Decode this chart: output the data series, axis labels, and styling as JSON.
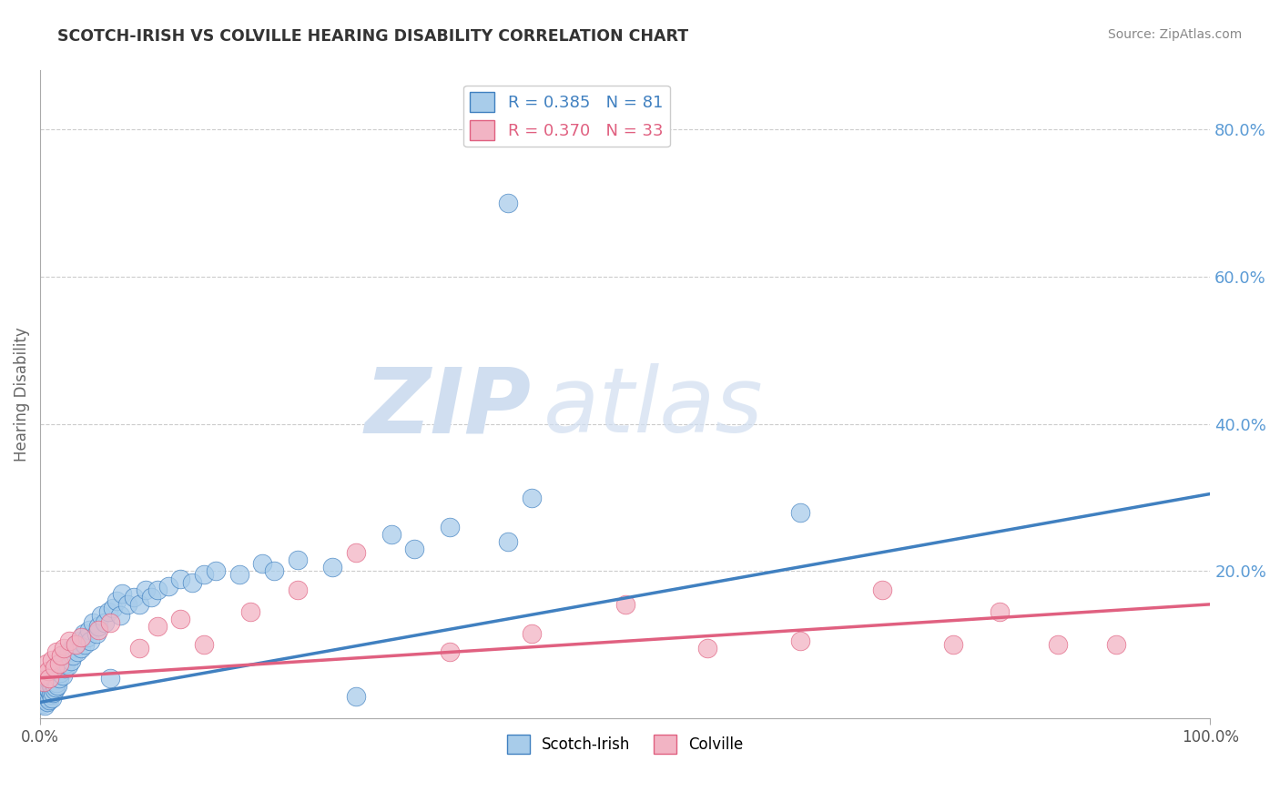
{
  "title": "SCOTCH-IRISH VS COLVILLE HEARING DISABILITY CORRELATION CHART",
  "source_text": "Source: ZipAtlas.com",
  "ylabel": "Hearing Disability",
  "right_ytick_labels": [
    "80.0%",
    "60.0%",
    "40.0%",
    "20.0%"
  ],
  "right_ytick_values": [
    0.8,
    0.6,
    0.4,
    0.2
  ],
  "xlim": [
    0.0,
    1.0
  ],
  "ylim": [
    0.0,
    0.88
  ],
  "blue_R": 0.385,
  "blue_N": 81,
  "pink_R": 0.37,
  "pink_N": 33,
  "blue_color": "#A8CCEA",
  "pink_color": "#F2B4C4",
  "blue_line_color": "#4080C0",
  "pink_line_color": "#E06080",
  "legend_label_blue": "Scotch-Irish",
  "legend_label_pink": "Colville",
  "watermark": "ZIPatlas",
  "watermark_color": "#D0DEF0",
  "background_color": "#ffffff",
  "grid_color": "#CCCCCC",
  "title_color": "#333333",
  "axis_label_color": "#666666",
  "right_tick_color": "#5B9BD5",
  "blue_trend_start": 0.022,
  "blue_trend_end": 0.305,
  "pink_trend_start": 0.055,
  "pink_trend_end": 0.155,
  "blue_x": [
    0.002,
    0.003,
    0.004,
    0.005,
    0.006,
    0.006,
    0.007,
    0.007,
    0.008,
    0.008,
    0.009,
    0.009,
    0.01,
    0.01,
    0.011,
    0.011,
    0.012,
    0.012,
    0.013,
    0.013,
    0.014,
    0.015,
    0.015,
    0.016,
    0.016,
    0.017,
    0.018,
    0.019,
    0.02,
    0.021,
    0.022,
    0.023,
    0.024,
    0.025,
    0.026,
    0.027,
    0.028,
    0.03,
    0.032,
    0.033,
    0.035,
    0.037,
    0.038,
    0.04,
    0.042,
    0.043,
    0.045,
    0.048,
    0.05,
    0.052,
    0.055,
    0.058,
    0.06,
    0.062,
    0.065,
    0.068,
    0.07,
    0.075,
    0.08,
    0.085,
    0.09,
    0.095,
    0.1,
    0.11,
    0.12,
    0.13,
    0.14,
    0.15,
    0.17,
    0.19,
    0.2,
    0.22,
    0.25,
    0.27,
    0.3,
    0.32,
    0.35,
    0.4,
    0.42,
    0.65,
    0.4
  ],
  "blue_y": [
    0.02,
    0.025,
    0.018,
    0.03,
    0.022,
    0.035,
    0.028,
    0.04,
    0.025,
    0.038,
    0.032,
    0.045,
    0.028,
    0.042,
    0.035,
    0.05,
    0.038,
    0.055,
    0.042,
    0.06,
    0.048,
    0.045,
    0.065,
    0.055,
    0.075,
    0.062,
    0.07,
    0.058,
    0.08,
    0.068,
    0.075,
    0.085,
    0.072,
    0.09,
    0.078,
    0.095,
    0.085,
    0.1,
    0.09,
    0.105,
    0.095,
    0.115,
    0.1,
    0.11,
    0.12,
    0.105,
    0.13,
    0.115,
    0.125,
    0.14,
    0.13,
    0.145,
    0.055,
    0.15,
    0.16,
    0.14,
    0.17,
    0.155,
    0.165,
    0.155,
    0.175,
    0.165,
    0.175,
    0.18,
    0.19,
    0.185,
    0.195,
    0.2,
    0.195,
    0.21,
    0.2,
    0.215,
    0.205,
    0.03,
    0.25,
    0.23,
    0.26,
    0.24,
    0.3,
    0.28,
    0.7
  ],
  "pink_x": [
    0.002,
    0.003,
    0.005,
    0.007,
    0.008,
    0.01,
    0.012,
    0.014,
    0.016,
    0.018,
    0.02,
    0.025,
    0.03,
    0.035,
    0.05,
    0.06,
    0.085,
    0.1,
    0.12,
    0.14,
    0.18,
    0.22,
    0.27,
    0.35,
    0.42,
    0.5,
    0.57,
    0.65,
    0.72,
    0.78,
    0.82,
    0.87,
    0.92
  ],
  "pink_y": [
    0.06,
    0.05,
    0.075,
    0.065,
    0.055,
    0.08,
    0.07,
    0.09,
    0.075,
    0.085,
    0.095,
    0.105,
    0.1,
    0.11,
    0.12,
    0.13,
    0.095,
    0.125,
    0.135,
    0.1,
    0.145,
    0.175,
    0.225,
    0.09,
    0.115,
    0.155,
    0.095,
    0.105,
    0.175,
    0.1,
    0.145,
    0.1,
    0.1
  ]
}
